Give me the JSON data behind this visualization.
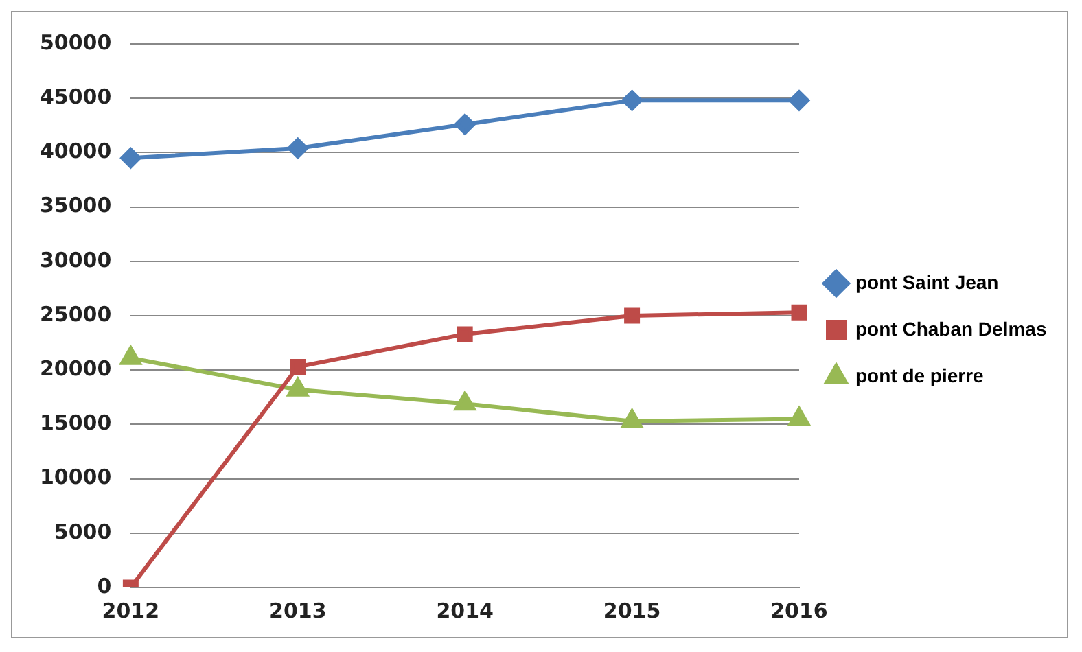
{
  "chart_data": {
    "type": "line",
    "categories": [
      "2012",
      "2013",
      "2014",
      "2015",
      "2016"
    ],
    "series": [
      {
        "name": "pont Saint Jean",
        "color": "#4a7ebb",
        "marker": "diamond",
        "values": [
          39500,
          40400,
          42600,
          44800,
          44800
        ]
      },
      {
        "name": "pont Chaban Delmas",
        "color": "#be4b48",
        "marker": "square",
        "values": [
          0,
          20300,
          23300,
          25000,
          25300
        ]
      },
      {
        "name": "pont de pierre",
        "color": "#98b954",
        "marker": "triangle",
        "values": [
          21100,
          18200,
          16900,
          15300,
          15500
        ]
      }
    ],
    "ylim": [
      0,
      50000
    ],
    "yticks": [
      0,
      5000,
      10000,
      15000,
      20000,
      25000,
      30000,
      35000,
      40000,
      45000,
      50000
    ],
    "grid": "y",
    "legend": "right",
    "line_style": "solid"
  }
}
